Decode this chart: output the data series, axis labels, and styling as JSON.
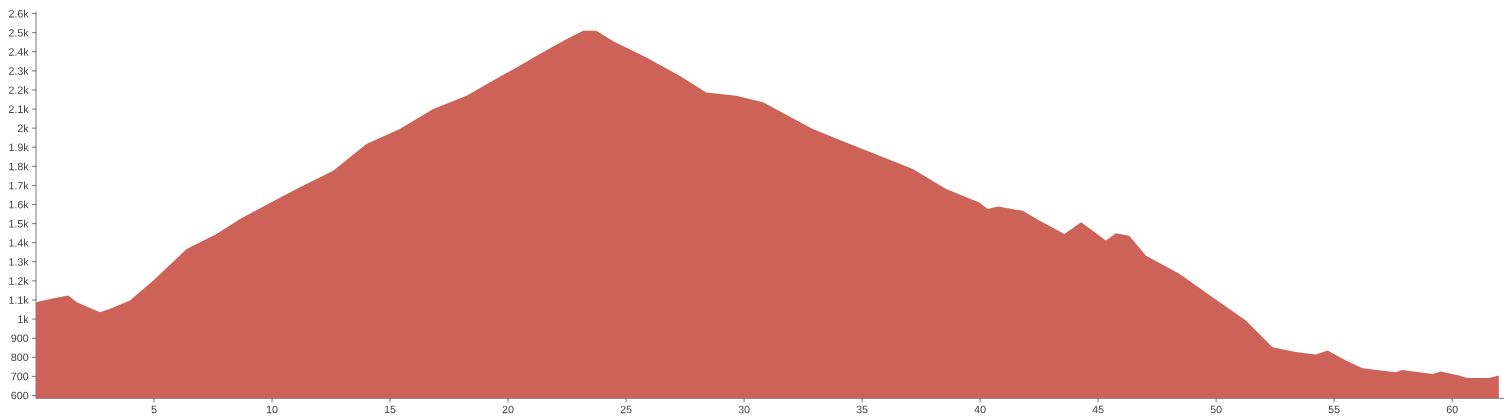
{
  "chart_data": {
    "type": "area",
    "color": "#cd6358",
    "xlim": [
      0,
      62.2
    ],
    "ylim": [
      585,
      2610
    ],
    "xticks": [
      5,
      10,
      15,
      20,
      25,
      30,
      35,
      40,
      45,
      50,
      55,
      60
    ],
    "yticks": [
      600,
      700,
      800,
      900,
      {
        "value": 1000,
        "label": "1k"
      },
      {
        "value": 1100,
        "label": "1.1k"
      },
      {
        "value": 1200,
        "label": "1.2k"
      },
      {
        "value": 1300,
        "label": "1.3k"
      },
      {
        "value": 1400,
        "label": "1.4k"
      },
      {
        "value": 1500,
        "label": "1.5k"
      },
      {
        "value": 1600,
        "label": "1.6k"
      },
      {
        "value": 1700,
        "label": "1.7k"
      },
      {
        "value": 1800,
        "label": "1.8k"
      },
      {
        "value": 1900,
        "label": "1.9k"
      },
      {
        "value": 2000,
        "label": "2k"
      },
      {
        "value": 2100,
        "label": "2.1k"
      },
      {
        "value": 2200,
        "label": "2.2k"
      },
      {
        "value": 2300,
        "label": "2.3k"
      },
      {
        "value": 2400,
        "label": "2.4k"
      },
      {
        "value": 2500,
        "label": "2.5k"
      },
      {
        "value": 2600,
        "label": "2.6k"
      }
    ],
    "grid": false,
    "x": [
      0,
      0.74,
      1.37,
      1.73,
      2.71,
      3.14,
      3.98,
      4.97,
      6.38,
      7.65,
      8.64,
      9.77,
      11.18,
      12.59,
      14.0,
      15.41,
      16.83,
      18.24,
      19.65,
      20.36,
      21.34,
      22.47,
      23.18,
      23.74,
      24.44,
      25.86,
      27.27,
      28.4,
      29.67,
      30.8,
      32.91,
      34.32,
      35.74,
      37.15,
      38.56,
      39.97,
      40.32,
      40.75,
      41.8,
      42.51,
      43.57,
      44.28,
      45.33,
      45.76,
      46.32,
      47.03,
      48.44,
      49.85,
      51.26,
      52.39,
      53.38,
      54.23,
      54.72,
      55.5,
      56.2,
      57.61,
      57.89,
      59.16,
      59.52,
      60.29,
      60.64,
      61.56,
      61.98
    ],
    "values": [
      1088,
      1109,
      1123,
      1088,
      1036,
      1054,
      1097,
      1202,
      1367,
      1446,
      1524,
      1599,
      1690,
      1777,
      1917,
      1995,
      2100,
      2170,
      2269,
      2318,
      2388,
      2466,
      2510,
      2510,
      2457,
      2370,
      2274,
      2187,
      2170,
      2135,
      1995,
      1925,
      1856,
      1786,
      1681,
      1611,
      1577,
      1589,
      1568,
      1516,
      1446,
      1507,
      1411,
      1449,
      1437,
      1332,
      1237,
      1114,
      992,
      853,
      827,
      815,
      835,
      783,
      743,
      722,
      734,
      713,
      726,
      705,
      691,
      691,
      705
    ]
  }
}
